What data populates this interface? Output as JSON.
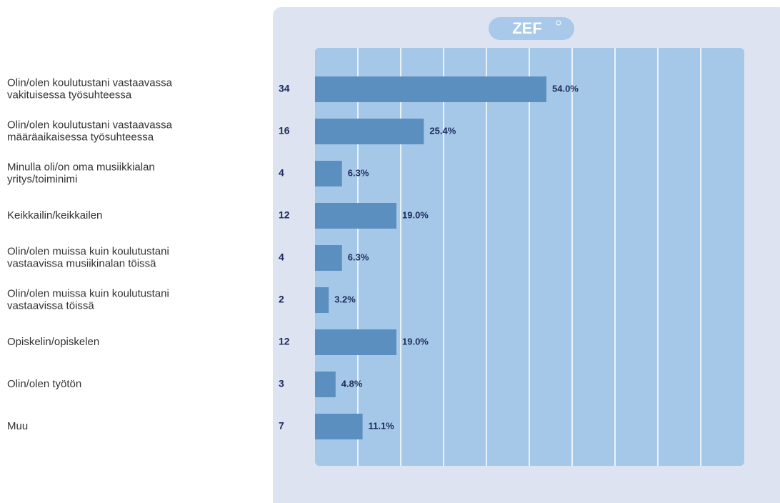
{
  "chart_data": {
    "type": "bar",
    "orientation": "horizontal",
    "logo": "ZEF",
    "categories": [
      [
        "Olin/olen koulutustani vastaavassa",
        "vakituisessa työsuhteessa"
      ],
      [
        "Olin/olen koulutustani vastaavassa",
        "määräaikaisessa työsuhteessa"
      ],
      [
        "Minulla oli/on oma musiikkialan",
        "yritys/toiminimi"
      ],
      [
        "Keikkailin/keikkailen"
      ],
      [
        "Olin/olen muissa kuin koulutustani",
        "vastaavissa musiikinalan töissä"
      ],
      [
        "Olin/olen muissa kuin koulutustani",
        "vastaavissa töissä"
      ],
      [
        "Opiskelin/opiskelen"
      ],
      [
        "Olin/olen työtön"
      ],
      [
        "Muu"
      ]
    ],
    "counts": [
      34,
      16,
      4,
      12,
      4,
      2,
      12,
      3,
      7
    ],
    "values": [
      54.0,
      25.4,
      6.3,
      19.0,
      6.3,
      3.2,
      19.0,
      4.8,
      11.1
    ],
    "value_labels": [
      "54.0%",
      "25.4%",
      "6.3%",
      "19.0%",
      "6.3%",
      "3.2%",
      "19.0%",
      "4.8%",
      "11.1%"
    ],
    "color": "#5a8fc0",
    "xlim": [
      0,
      100
    ],
    "xticks": [
      0,
      10,
      20,
      30,
      40,
      50,
      60,
      70,
      80,
      90,
      100
    ],
    "grid": true
  }
}
